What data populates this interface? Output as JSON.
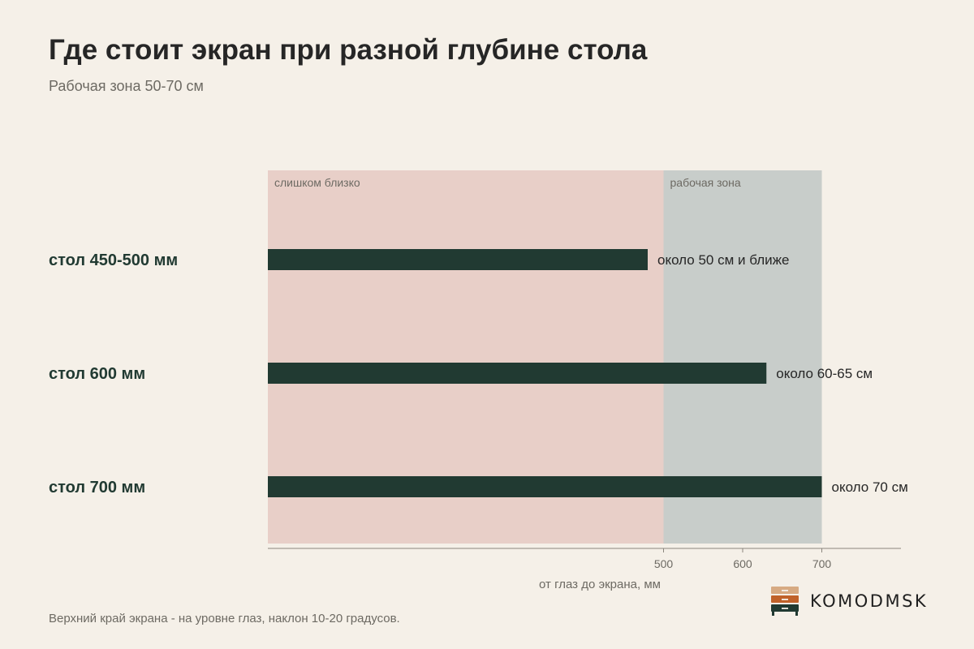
{
  "title": "Где стоит экран при разной глубине стола",
  "subtitle": "Рабочая зона 50-70 см",
  "footnote": "Верхний край экрана - на уровне глаз, наклон 10-20 градусов.",
  "brand": {
    "name": "KOMODMSK"
  },
  "colors": {
    "background": "#f5f0e8",
    "too_close_zone": "#e8cfc8",
    "work_zone": "#c8cdca",
    "bar": "#213a32",
    "axis": "#8a857d",
    "axis_text": "#6d6a63"
  },
  "chart_data": {
    "type": "bar",
    "orientation": "horizontal",
    "categories": [
      "стол 450-500 мм",
      "стол 600 мм",
      "стол 700 мм"
    ],
    "values": [
      480,
      630,
      700
    ],
    "data_labels": [
      "около 50 см и ближе",
      "около 60-65 см",
      "около 70 см"
    ],
    "xlabel": "от глаз до экрана, мм",
    "xlim": [
      0,
      800
    ],
    "xticks": [
      500,
      600,
      700
    ],
    "zones": [
      {
        "label": "слишком близко",
        "from": 0,
        "to": 500
      },
      {
        "label": "рабочая зона",
        "from": 500,
        "to": 700
      }
    ],
    "grid": false,
    "legend": "none"
  }
}
